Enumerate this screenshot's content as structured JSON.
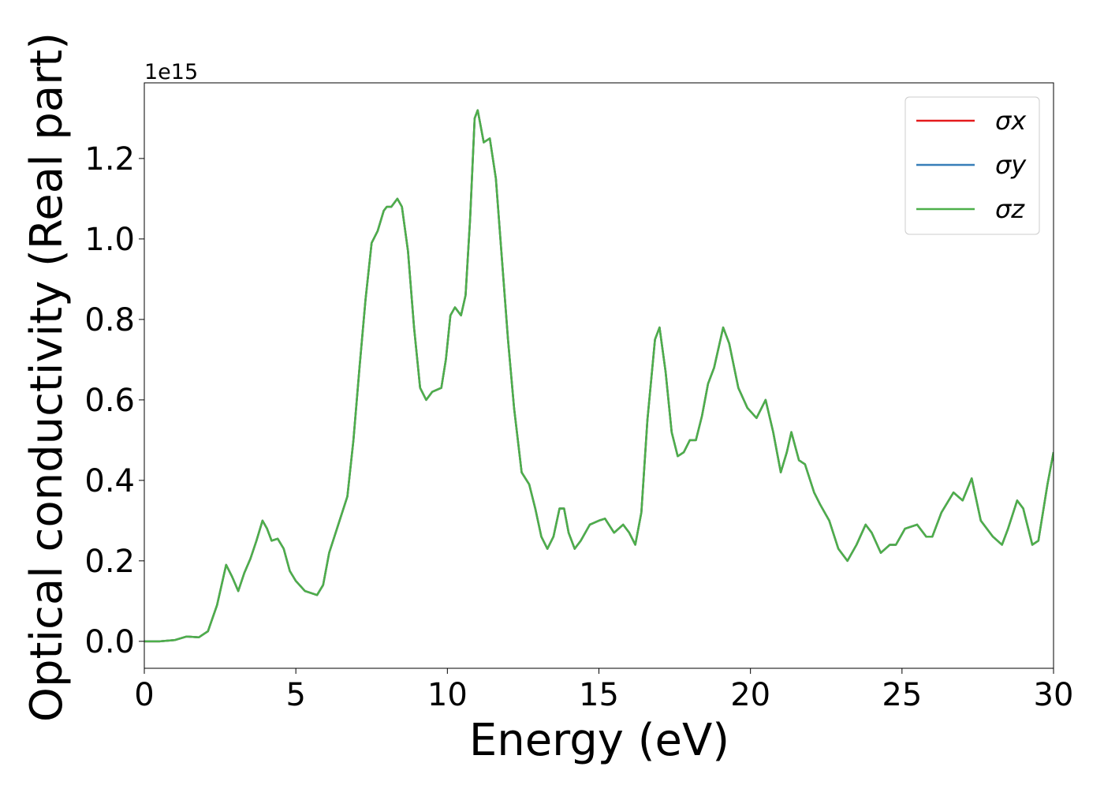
{
  "chart_data": {
    "type": "line",
    "xlabel": "Energy (eV)",
    "ylabel": "Optical conductivity (Real part)",
    "y_offset_label": "1e15",
    "x": [
      0,
      0.5,
      1.0,
      1.4,
      1.8,
      2.1,
      2.4,
      2.7,
      2.9,
      3.1,
      3.3,
      3.5,
      3.7,
      3.9,
      4.05,
      4.2,
      4.4,
      4.6,
      4.8,
      5.0,
      5.3,
      5.7,
      5.9,
      6.1,
      6.4,
      6.7,
      6.9,
      7.1,
      7.3,
      7.5,
      7.7,
      7.9,
      8.0,
      8.15,
      8.35,
      8.5,
      8.7,
      8.9,
      9.1,
      9.3,
      9.5,
      9.8,
      9.95,
      10.1,
      10.25,
      10.45,
      10.6,
      10.75,
      10.9,
      11.0,
      11.2,
      11.4,
      11.6,
      11.8,
      12.0,
      12.2,
      12.45,
      12.7,
      12.9,
      13.1,
      13.3,
      13.5,
      13.7,
      13.85,
      14.0,
      14.2,
      14.4,
      14.7,
      15.0,
      15.2,
      15.5,
      15.8,
      16.0,
      16.2,
      16.4,
      16.6,
      16.85,
      17.0,
      17.2,
      17.4,
      17.6,
      17.8,
      18.0,
      18.2,
      18.4,
      18.6,
      18.8,
      19.1,
      19.3,
      19.6,
      19.9,
      20.2,
      20.5,
      20.75,
      21.0,
      21.2,
      21.35,
      21.6,
      21.8,
      22.1,
      22.3,
      22.6,
      22.9,
      23.2,
      23.5,
      23.8,
      24.0,
      24.3,
      24.6,
      24.8,
      25.1,
      25.5,
      25.8,
      26.0,
      26.3,
      26.7,
      27.0,
      27.3,
      27.6,
      28.0,
      28.3,
      28.5,
      28.8,
      29.0,
      29.3,
      29.5,
      29.8,
      30
    ],
    "series": [
      {
        "name": "σx",
        "color": "#e41a1c",
        "values": [
          0,
          0,
          0.003,
          0.012,
          0.01,
          0.025,
          0.09,
          0.19,
          0.16,
          0.125,
          0.17,
          0.205,
          0.25,
          0.3,
          0.28,
          0.25,
          0.255,
          0.23,
          0.175,
          0.15,
          0.125,
          0.115,
          0.14,
          0.22,
          0.29,
          0.36,
          0.5,
          0.68,
          0.85,
          0.99,
          1.02,
          1.07,
          1.08,
          1.08,
          1.1,
          1.08,
          0.97,
          0.78,
          0.63,
          0.6,
          0.62,
          0.63,
          0.7,
          0.81,
          0.83,
          0.81,
          0.86,
          1.05,
          1.3,
          1.32,
          1.24,
          1.25,
          1.15,
          0.95,
          0.75,
          0.58,
          0.42,
          0.39,
          0.33,
          0.26,
          0.23,
          0.26,
          0.33,
          0.33,
          0.27,
          0.23,
          0.25,
          0.29,
          0.3,
          0.305,
          0.27,
          0.29,
          0.27,
          0.24,
          0.32,
          0.55,
          0.75,
          0.78,
          0.67,
          0.52,
          0.46,
          0.47,
          0.5,
          0.5,
          0.56,
          0.64,
          0.68,
          0.78,
          0.74,
          0.63,
          0.58,
          0.555,
          0.6,
          0.52,
          0.42,
          0.47,
          0.52,
          0.45,
          0.44,
          0.37,
          0.34,
          0.3,
          0.23,
          0.2,
          0.24,
          0.29,
          0.27,
          0.22,
          0.24,
          0.24,
          0.28,
          0.29,
          0.26,
          0.26,
          0.32,
          0.37,
          0.35,
          0.405,
          0.3,
          0.26,
          0.24,
          0.28,
          0.35,
          0.33,
          0.24,
          0.25,
          0.39,
          0.47
        ]
      },
      {
        "name": "σy",
        "color": "#377eb8",
        "values": [
          0,
          0,
          0.003,
          0.012,
          0.01,
          0.025,
          0.09,
          0.19,
          0.16,
          0.125,
          0.17,
          0.205,
          0.25,
          0.3,
          0.28,
          0.25,
          0.255,
          0.23,
          0.175,
          0.15,
          0.125,
          0.115,
          0.14,
          0.22,
          0.29,
          0.36,
          0.5,
          0.68,
          0.85,
          0.99,
          1.02,
          1.07,
          1.08,
          1.08,
          1.1,
          1.08,
          0.97,
          0.78,
          0.63,
          0.6,
          0.62,
          0.63,
          0.7,
          0.81,
          0.83,
          0.81,
          0.86,
          1.05,
          1.3,
          1.32,
          1.24,
          1.25,
          1.15,
          0.95,
          0.75,
          0.58,
          0.42,
          0.39,
          0.33,
          0.26,
          0.23,
          0.26,
          0.33,
          0.33,
          0.27,
          0.23,
          0.25,
          0.29,
          0.3,
          0.305,
          0.27,
          0.29,
          0.27,
          0.24,
          0.32,
          0.55,
          0.75,
          0.78,
          0.67,
          0.52,
          0.46,
          0.47,
          0.5,
          0.5,
          0.56,
          0.64,
          0.68,
          0.78,
          0.74,
          0.63,
          0.58,
          0.555,
          0.6,
          0.52,
          0.42,
          0.47,
          0.52,
          0.45,
          0.44,
          0.37,
          0.34,
          0.3,
          0.23,
          0.2,
          0.24,
          0.29,
          0.27,
          0.22,
          0.24,
          0.24,
          0.28,
          0.29,
          0.26,
          0.26,
          0.32,
          0.37,
          0.35,
          0.405,
          0.3,
          0.26,
          0.24,
          0.28,
          0.35,
          0.33,
          0.24,
          0.25,
          0.39,
          0.47
        ]
      },
      {
        "name": "σz",
        "color": "#4daf4a",
        "values": [
          0,
          0,
          0.003,
          0.012,
          0.01,
          0.025,
          0.09,
          0.19,
          0.16,
          0.125,
          0.17,
          0.205,
          0.25,
          0.3,
          0.28,
          0.25,
          0.255,
          0.23,
          0.175,
          0.15,
          0.125,
          0.115,
          0.14,
          0.22,
          0.29,
          0.36,
          0.5,
          0.68,
          0.85,
          0.99,
          1.02,
          1.07,
          1.08,
          1.08,
          1.1,
          1.08,
          0.97,
          0.78,
          0.63,
          0.6,
          0.62,
          0.63,
          0.7,
          0.81,
          0.83,
          0.81,
          0.86,
          1.05,
          1.3,
          1.32,
          1.24,
          1.25,
          1.15,
          0.95,
          0.75,
          0.58,
          0.42,
          0.39,
          0.33,
          0.26,
          0.23,
          0.26,
          0.33,
          0.33,
          0.27,
          0.23,
          0.25,
          0.29,
          0.3,
          0.305,
          0.27,
          0.29,
          0.27,
          0.24,
          0.32,
          0.55,
          0.75,
          0.78,
          0.67,
          0.52,
          0.46,
          0.47,
          0.5,
          0.5,
          0.56,
          0.64,
          0.68,
          0.78,
          0.74,
          0.63,
          0.58,
          0.555,
          0.6,
          0.52,
          0.42,
          0.47,
          0.52,
          0.45,
          0.44,
          0.37,
          0.34,
          0.3,
          0.23,
          0.2,
          0.24,
          0.29,
          0.27,
          0.22,
          0.24,
          0.24,
          0.28,
          0.29,
          0.26,
          0.26,
          0.32,
          0.37,
          0.35,
          0.405,
          0.3,
          0.26,
          0.24,
          0.28,
          0.35,
          0.33,
          0.24,
          0.25,
          0.39,
          0.47
        ]
      }
    ],
    "xlim": [
      0,
      30
    ],
    "xticks": [
      0,
      5,
      10,
      15,
      20,
      25,
      30
    ],
    "ylim": [
      -0.067,
      1.388
    ],
    "yticks": [
      {
        "value": 0,
        "label": "0.0"
      },
      0.2,
      0.4,
      0.6,
      0.8,
      {
        "value": 1,
        "label": "1.0"
      },
      1.2
    ],
    "grid": false,
    "legend": "upper right"
  }
}
